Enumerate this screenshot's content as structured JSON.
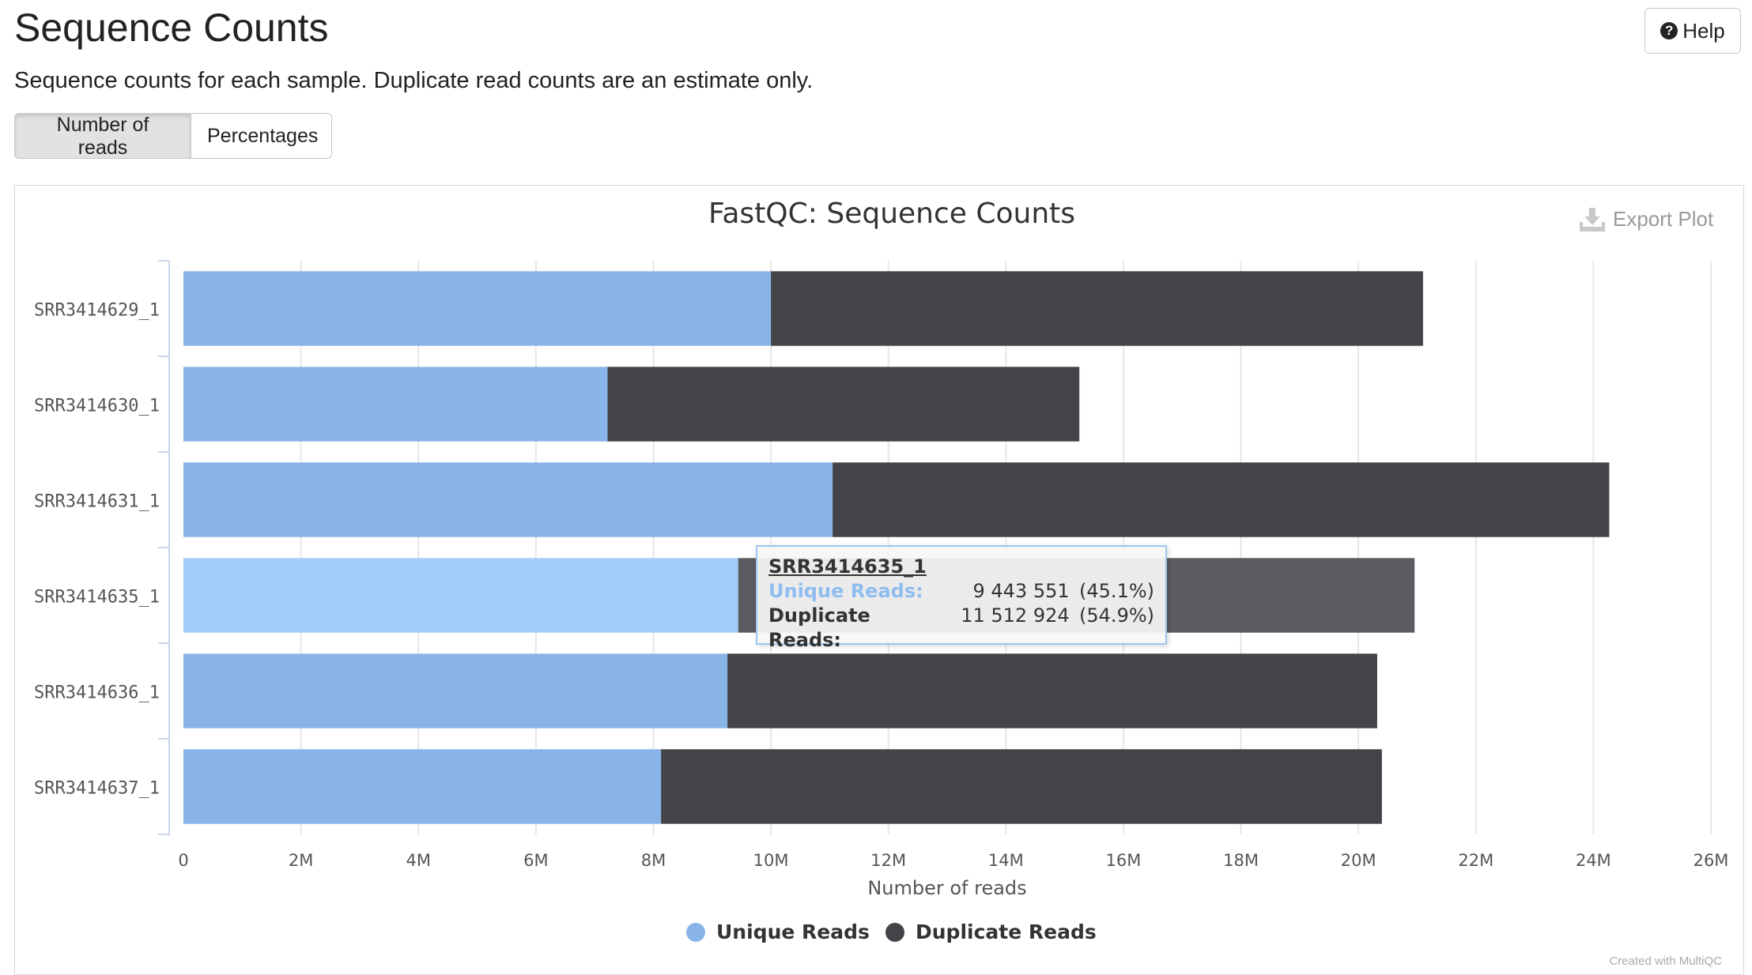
{
  "page": {
    "title": "Sequence Counts",
    "help_label": "Help",
    "description": "Sequence counts for each sample. Duplicate read counts are an estimate only.",
    "tabs": [
      {
        "label": "Number of reads",
        "active": true
      },
      {
        "label": "Percentages",
        "active": false
      }
    ],
    "export_label": "Export Plot",
    "footer": "Created with MultiQC"
  },
  "chart_data": {
    "type": "bar",
    "orientation": "horizontal",
    "stacked": true,
    "title": "FastQC: Sequence Counts",
    "xlabel": "Number of reads",
    "ylabel": "",
    "xlim": [
      0,
      26000000
    ],
    "xticks": [
      0,
      2000000,
      4000000,
      6000000,
      8000000,
      10000000,
      12000000,
      14000000,
      16000000,
      18000000,
      20000000,
      22000000,
      24000000,
      26000000
    ],
    "xtick_labels": [
      "0",
      "2M",
      "4M",
      "6M",
      "8M",
      "10M",
      "12M",
      "14M",
      "16M",
      "18M",
      "20M",
      "22M",
      "24M",
      "26M"
    ],
    "categories": [
      "SRR3414629_1",
      "SRR3414630_1",
      "SRR3414631_1",
      "SRR3414635_1",
      "SRR3414636_1",
      "SRR3414637_1"
    ],
    "series": [
      {
        "name": "Unique Reads",
        "color": "#88b4e7",
        "values": [
          10000000,
          7220000,
          11050000,
          9443551,
          9260000,
          8130000
        ]
      },
      {
        "name": "Duplicate Reads",
        "color": "#434348",
        "values": [
          11100000,
          8030000,
          13220000,
          11512924,
          11060000,
          12270000
        ]
      }
    ],
    "highlight_index": 3,
    "highlight_colors": [
      "#a4ccf8",
      "#5b5b60"
    ],
    "grid": true,
    "legend": "bottom-center",
    "tooltip": {
      "title": "SRR3414635_1",
      "rows": [
        {
          "label": "Unique Reads:",
          "value": "9 443 551",
          "pct": "(45.1%)"
        },
        {
          "label": "Duplicate Reads:",
          "value": "11 512 924",
          "pct": "(54.9%)"
        }
      ]
    }
  }
}
